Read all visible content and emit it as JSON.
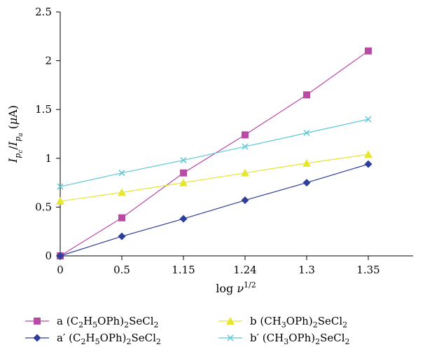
{
  "chart_data": {
    "type": "line",
    "categories": [
      "0",
      "0.5",
      "1.15",
      "1.24",
      "1.3",
      "1.35"
    ],
    "xlabel": "log ν^1/2",
    "ylabel": "I_pc/I_pa (μA)",
    "ylim": [
      0,
      2.5
    ],
    "yticks": [
      "0",
      "0.5",
      "1",
      "1.5",
      "2",
      "2.5"
    ],
    "grid": false,
    "legend_position": "bottom",
    "series": [
      {
        "name": "a (C2H5OPh)2SeCl2",
        "label_prefix": "a",
        "formula": [
          "(C",
          "2",
          "H",
          "5",
          "OPh)",
          "2",
          "SeCl",
          "2"
        ],
        "marker": "square",
        "color": "#b94aa6",
        "values": [
          0.0,
          0.39,
          0.85,
          1.24,
          1.65,
          2.1
        ]
      },
      {
        "name": "b (CH3OPh)2SeCl2",
        "label_prefix": "b",
        "formula": [
          "(CH",
          "3",
          "OPh)",
          "2",
          "SeCl",
          "2"
        ],
        "marker": "triangle",
        "color": "#e6e62e",
        "values": [
          0.56,
          0.65,
          0.75,
          0.85,
          0.95,
          1.04
        ]
      },
      {
        "name": "a′ (C2H5OPh)2SeCl2",
        "label_prefix": "a′",
        "formula": [
          "(C",
          "2",
          "H",
          "5",
          "OPh)",
          "2",
          "SeCl",
          "2"
        ],
        "marker": "diamond",
        "color": "#2e3f99",
        "values": [
          0.0,
          0.2,
          0.38,
          0.57,
          0.75,
          0.94
        ]
      },
      {
        "name": "b′ (CH3OPh)2SeCl2",
        "label_prefix": "b′",
        "formula": [
          "(CH",
          "3",
          "OPh)",
          "2",
          "SeCl",
          "2"
        ],
        "marker": "x",
        "color": "#5ec8d8",
        "values": [
          0.71,
          0.85,
          0.98,
          1.12,
          1.26,
          1.4
        ]
      }
    ]
  }
}
